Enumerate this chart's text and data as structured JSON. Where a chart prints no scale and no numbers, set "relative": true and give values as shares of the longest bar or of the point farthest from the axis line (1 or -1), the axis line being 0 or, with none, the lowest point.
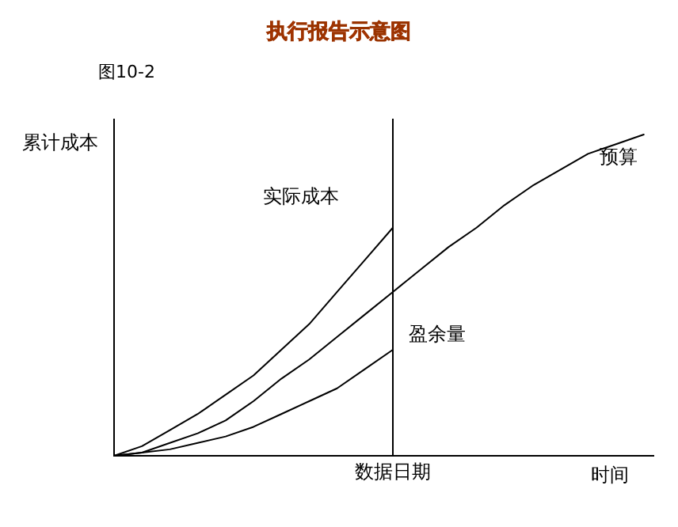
{
  "chart_data": {
    "type": "line",
    "title": "执行报告示意图",
    "subtitle": "图10-2",
    "ylabel": "累计成本",
    "xlabel": "时间",
    "relative": true,
    "legend": false,
    "marker": "none",
    "line_style": "solid",
    "categories": [
      null,
      null,
      null,
      null,
      null,
      null,
      null,
      null,
      null,
      null,
      null,
      null,
      null,
      null,
      null,
      null,
      null,
      null,
      null,
      null
    ],
    "series": [
      {
        "name": "实际成本",
        "color": "#000000",
        "values": [
          0,
          0.03,
          0.08,
          0.13,
          0.19,
          0.25,
          0.33,
          0.41,
          0.51,
          0.61,
          0.71,
          null,
          null,
          null,
          null,
          null,
          null,
          null,
          null,
          null
        ]
      },
      {
        "name": "预算",
        "color": "#000000",
        "values": [
          0,
          0.01,
          0.04,
          0.07,
          0.11,
          0.17,
          0.24,
          0.3,
          0.37,
          0.44,
          0.51,
          0.58,
          0.65,
          0.71,
          0.78,
          0.84,
          0.89,
          0.94,
          0.97,
          1
        ]
      },
      {
        "name": "盈余量",
        "color": "#000000",
        "values": [
          0,
          0.01,
          0.02,
          0.04,
          0.06,
          0.09,
          0.13,
          0.17,
          0.21,
          0.27,
          0.33,
          null,
          null,
          null,
          null,
          null,
          null,
          null,
          null,
          null
        ]
      }
    ],
    "annotations": [
      "数据日期"
    ]
  }
}
